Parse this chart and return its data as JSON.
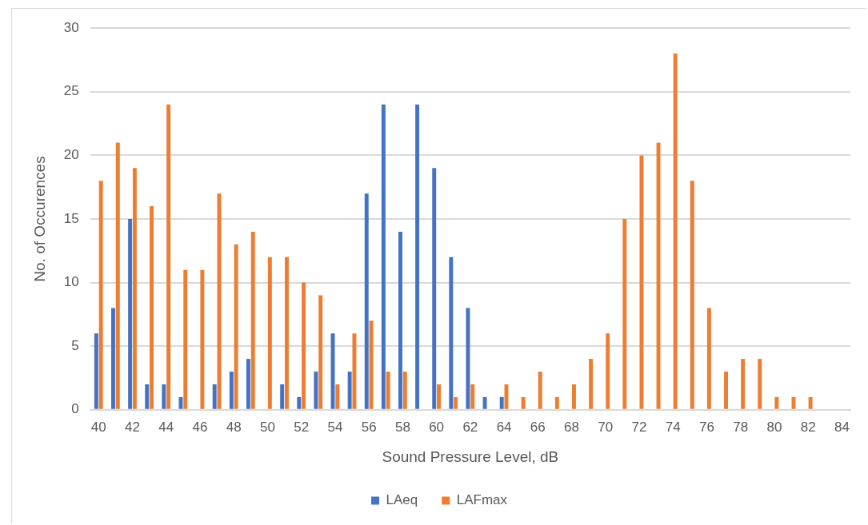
{
  "chart_data": {
    "type": "bar",
    "xlabel": "Sound Pressure Level, dB",
    "ylabel": "No. of Occurences",
    "categories": [
      "40",
      null,
      "42",
      null,
      "44",
      null,
      "46",
      null,
      "48",
      null,
      "50",
      null,
      "52",
      null,
      "54",
      null,
      "56",
      null,
      "58",
      null,
      "60",
      null,
      "62",
      null,
      "64",
      null,
      "66",
      null,
      "68",
      null,
      "70",
      null,
      "72",
      null,
      "74",
      null,
      "76",
      null,
      "78",
      null,
      "80",
      null,
      "82",
      null,
      "84"
    ],
    "series": [
      {
        "name": "LAeq",
        "color": "#4472c4",
        "values": [
          6,
          8,
          15,
          2,
          2,
          1,
          null,
          2,
          3,
          4,
          null,
          2,
          1,
          3,
          6,
          3,
          17,
          24,
          14,
          24,
          19,
          12,
          8,
          1,
          1,
          null,
          null,
          null,
          null,
          null,
          null,
          null,
          null,
          null,
          null,
          null,
          null,
          null,
          null,
          null,
          null,
          null,
          null,
          null,
          null
        ]
      },
      {
        "name": "LAFmax",
        "color": "#ed7d31",
        "values": [
          18,
          21,
          19,
          16,
          24,
          11,
          11,
          17,
          13,
          14,
          12,
          12,
          10,
          9,
          2,
          6,
          7,
          3,
          3,
          null,
          2,
          1,
          2,
          null,
          2,
          1,
          3,
          1,
          2,
          4,
          6,
          15,
          20,
          21,
          28,
          18,
          8,
          3,
          4,
          4,
          1,
          1,
          1,
          null,
          null
        ]
      }
    ],
    "ylim": [
      0,
      30
    ],
    "yticks": [
      0,
      5,
      10,
      15,
      20,
      25,
      30
    ],
    "grid": "y",
    "legend": "bottom"
  }
}
